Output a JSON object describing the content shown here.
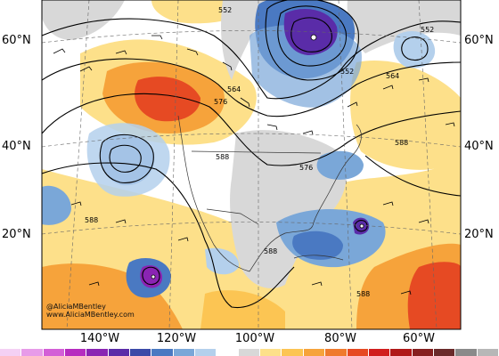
{
  "map": {
    "lat_labels_left": [
      "60°N",
      "40°N",
      "20°N"
    ],
    "lat_labels_right": [
      "60°N",
      "40°N",
      "20°N"
    ],
    "lon_labels": [
      "140°W",
      "120°W",
      "100°W",
      "80°W",
      "60°W"
    ],
    "contour_labels": [
      "552",
      "552",
      "552",
      "564",
      "576",
      "564",
      "588",
      "576",
      "588",
      "588",
      "588",
      "588",
      "588"
    ],
    "credit_line1": "@AliciaMBentley",
    "credit_line2": "www.AliciaMBentley.com"
  },
  "colorbar": {
    "colors": [
      "#f4d0f4",
      "#e79be9",
      "#d35fd7",
      "#b62cc0",
      "#8a24b3",
      "#5a2ca8",
      "#3b4aa8",
      "#4a79c2",
      "#7aa7d8",
      "#b4d0ec",
      "#ffffff",
      "#d8d8d8",
      "#fde08a",
      "#fcc553",
      "#f6a33b",
      "#ef7a2d",
      "#e64a23",
      "#d11e1e",
      "#b01818",
      "#862020",
      "#6a2a2a",
      "#8a8a8a",
      "#b7b7b7"
    ]
  }
}
